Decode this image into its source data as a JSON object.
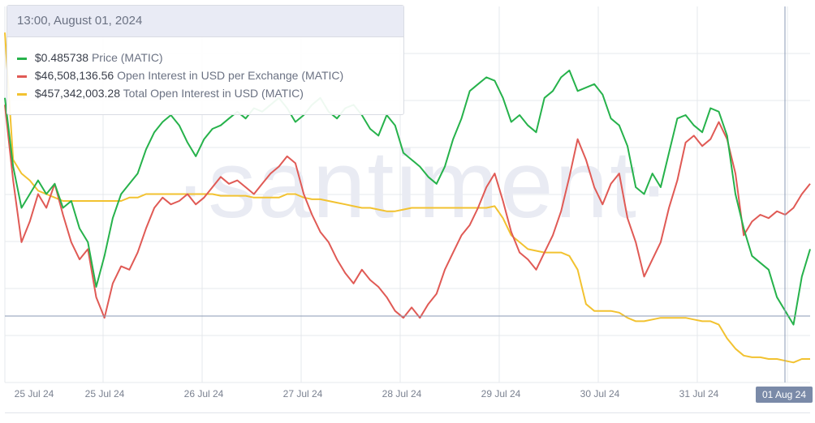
{
  "tooltip": {
    "header": "13:00, August 01, 2024",
    "rows": [
      {
        "value": "$0.485738",
        "label": "Price (MATIC)",
        "color": "#26b24b"
      },
      {
        "value": "$46,508,136.56",
        "label": "Open Interest in USD per Exchange (MATIC)",
        "color": "#e05a55"
      },
      {
        "value": "$457,342,003.28",
        "label": "Total Open Interest in USD (MATIC)",
        "color": "#f2c230"
      }
    ]
  },
  "watermark": "·santiment·",
  "colors": {
    "price": "#26b24b",
    "oi_exchange": "#e05a55",
    "oi_total": "#f2c230",
    "crosshair": "#8a9ab5",
    "badge": "#7a8aa8"
  },
  "chart_data": {
    "type": "line",
    "xlabel": "",
    "ylabel": "",
    "x_tick_labels": [
      "25 Jul 24",
      "25 Jul 24",
      "26 Jul 24",
      "27 Jul 24",
      "28 Jul 24",
      "29 Jul 24",
      "30 Jul 24",
      "31 Jul 24",
      "01 Aug 24"
    ],
    "highlighted_tick": "01 Aug 24",
    "crosshair_time": "13:00, August 01, 2024",
    "grid": true,
    "legend": "tooltip top-left",
    "x_range": [
      0,
      192
    ],
    "y_range": [
      0,
      100
    ],
    "series": [
      {
        "name": "Price (MATIC)",
        "color": "#26b24b",
        "points": [
          [
            0,
            80
          ],
          [
            2,
            60
          ],
          [
            4,
            48
          ],
          [
            6,
            52
          ],
          [
            8,
            56
          ],
          [
            10,
            52
          ],
          [
            12,
            55
          ],
          [
            14,
            48
          ],
          [
            16,
            50
          ],
          [
            18,
            42
          ],
          [
            20,
            38
          ],
          [
            22,
            25
          ],
          [
            24,
            34
          ],
          [
            26,
            45
          ],
          [
            28,
            52
          ],
          [
            30,
            55
          ],
          [
            32,
            58
          ],
          [
            34,
            65
          ],
          [
            36,
            70
          ],
          [
            38,
            73
          ],
          [
            40,
            75
          ],
          [
            42,
            72
          ],
          [
            44,
            67
          ],
          [
            46,
            63
          ],
          [
            48,
            68
          ],
          [
            50,
            71
          ],
          [
            52,
            72
          ],
          [
            54,
            74
          ],
          [
            56,
            76
          ],
          [
            58,
            74
          ],
          [
            60,
            77
          ],
          [
            62,
            76
          ],
          [
            64,
            78
          ],
          [
            66,
            80
          ],
          [
            68,
            77
          ],
          [
            70,
            73
          ],
          [
            72,
            75
          ],
          [
            74,
            78
          ],
          [
            76,
            80
          ],
          [
            78,
            76
          ],
          [
            80,
            74
          ],
          [
            82,
            77
          ],
          [
            84,
            78
          ],
          [
            86,
            75
          ],
          [
            88,
            71
          ],
          [
            90,
            69
          ],
          [
            92,
            75
          ],
          [
            94,
            72
          ],
          [
            96,
            64
          ],
          [
            98,
            62
          ],
          [
            100,
            60
          ],
          [
            102,
            57
          ],
          [
            104,
            55
          ],
          [
            106,
            60
          ],
          [
            108,
            68
          ],
          [
            110,
            74
          ],
          [
            112,
            82
          ],
          [
            114,
            84
          ],
          [
            116,
            86
          ],
          [
            118,
            85
          ],
          [
            120,
            80
          ],
          [
            122,
            73
          ],
          [
            124,
            75
          ],
          [
            126,
            72
          ],
          [
            128,
            70
          ],
          [
            130,
            80
          ],
          [
            132,
            82
          ],
          [
            134,
            86
          ],
          [
            136,
            88
          ],
          [
            138,
            82
          ],
          [
            140,
            83
          ],
          [
            142,
            84
          ],
          [
            144,
            81
          ],
          [
            146,
            74
          ],
          [
            148,
            72
          ],
          [
            150,
            66
          ],
          [
            152,
            54
          ],
          [
            154,
            52
          ],
          [
            156,
            58
          ],
          [
            158,
            54
          ],
          [
            160,
            64
          ],
          [
            162,
            74
          ],
          [
            164,
            75
          ],
          [
            166,
            72
          ],
          [
            168,
            70
          ],
          [
            170,
            77
          ],
          [
            172,
            76
          ],
          [
            174,
            69
          ],
          [
            176,
            52
          ],
          [
            178,
            42
          ],
          [
            180,
            34
          ],
          [
            182,
            32
          ],
          [
            184,
            30
          ],
          [
            186,
            22
          ],
          [
            188,
            18
          ],
          [
            190,
            14
          ],
          [
            192,
            28
          ],
          [
            194,
            36
          ]
        ]
      },
      {
        "name": "Open Interest in USD per Exchange (MATIC)",
        "color": "#e05a55",
        "points": [
          [
            0,
            78
          ],
          [
            2,
            56
          ],
          [
            4,
            38
          ],
          [
            6,
            44
          ],
          [
            8,
            52
          ],
          [
            10,
            48
          ],
          [
            12,
            55
          ],
          [
            14,
            46
          ],
          [
            16,
            38
          ],
          [
            18,
            33
          ],
          [
            20,
            36
          ],
          [
            22,
            22
          ],
          [
            24,
            16
          ],
          [
            26,
            26
          ],
          [
            28,
            31
          ],
          [
            30,
            30
          ],
          [
            32,
            35
          ],
          [
            34,
            42
          ],
          [
            36,
            48
          ],
          [
            38,
            51
          ],
          [
            40,
            49
          ],
          [
            42,
            50
          ],
          [
            44,
            52
          ],
          [
            46,
            49
          ],
          [
            48,
            51
          ],
          [
            50,
            54
          ],
          [
            52,
            57
          ],
          [
            54,
            55
          ],
          [
            56,
            56
          ],
          [
            58,
            54
          ],
          [
            60,
            52
          ],
          [
            62,
            55
          ],
          [
            64,
            58
          ],
          [
            66,
            60
          ],
          [
            68,
            63
          ],
          [
            70,
            61
          ],
          [
            72,
            52
          ],
          [
            74,
            46
          ],
          [
            76,
            41
          ],
          [
            78,
            38
          ],
          [
            80,
            33
          ],
          [
            82,
            29
          ],
          [
            84,
            26
          ],
          [
            86,
            30
          ],
          [
            88,
            27
          ],
          [
            90,
            25
          ],
          [
            92,
            22
          ],
          [
            94,
            18
          ],
          [
            96,
            16
          ],
          [
            98,
            19
          ],
          [
            100,
            16
          ],
          [
            102,
            20
          ],
          [
            104,
            23
          ],
          [
            106,
            30
          ],
          [
            108,
            35
          ],
          [
            110,
            40
          ],
          [
            112,
            43
          ],
          [
            114,
            48
          ],
          [
            116,
            54
          ],
          [
            118,
            58
          ],
          [
            120,
            50
          ],
          [
            122,
            41
          ],
          [
            124,
            35
          ],
          [
            126,
            33
          ],
          [
            128,
            30
          ],
          [
            130,
            35
          ],
          [
            132,
            40
          ],
          [
            134,
            47
          ],
          [
            136,
            57
          ],
          [
            138,
            68
          ],
          [
            140,
            62
          ],
          [
            142,
            54
          ],
          [
            144,
            49
          ],
          [
            146,
            55
          ],
          [
            148,
            58
          ],
          [
            150,
            45
          ],
          [
            152,
            38
          ],
          [
            154,
            28
          ],
          [
            156,
            33
          ],
          [
            158,
            38
          ],
          [
            160,
            48
          ],
          [
            162,
            56
          ],
          [
            164,
            67
          ],
          [
            166,
            69
          ],
          [
            168,
            66
          ],
          [
            170,
            68
          ],
          [
            172,
            73
          ],
          [
            174,
            68
          ],
          [
            176,
            58
          ],
          [
            178,
            40
          ],
          [
            180,
            44
          ],
          [
            182,
            46
          ],
          [
            184,
            45
          ],
          [
            186,
            47
          ],
          [
            188,
            46
          ],
          [
            190,
            48
          ],
          [
            192,
            52
          ],
          [
            194,
            55
          ]
        ]
      },
      {
        "name": "Total Open Interest in USD (MATIC)",
        "color": "#f2c230",
        "points": [
          [
            0,
            99
          ],
          [
            2,
            62
          ],
          [
            4,
            58
          ],
          [
            6,
            56
          ],
          [
            8,
            53
          ],
          [
            10,
            52
          ],
          [
            12,
            51
          ],
          [
            14,
            50
          ],
          [
            16,
            50
          ],
          [
            18,
            50
          ],
          [
            20,
            50
          ],
          [
            22,
            50
          ],
          [
            24,
            50
          ],
          [
            26,
            50
          ],
          [
            28,
            50
          ],
          [
            30,
            51
          ],
          [
            32,
            51
          ],
          [
            34,
            52
          ],
          [
            36,
            52
          ],
          [
            38,
            52
          ],
          [
            40,
            52
          ],
          [
            42,
            52
          ],
          [
            44,
            52
          ],
          [
            46,
            52
          ],
          [
            48,
            52
          ],
          [
            50,
            52
          ],
          [
            52,
            51.5
          ],
          [
            54,
            51.5
          ],
          [
            56,
            51.5
          ],
          [
            58,
            51.5
          ],
          [
            60,
            51
          ],
          [
            62,
            51
          ],
          [
            64,
            51
          ],
          [
            66,
            51
          ],
          [
            68,
            52
          ],
          [
            70,
            52
          ],
          [
            72,
            51
          ],
          [
            74,
            50.5
          ],
          [
            76,
            50.5
          ],
          [
            78,
            50
          ],
          [
            80,
            49.5
          ],
          [
            82,
            49
          ],
          [
            84,
            48.5
          ],
          [
            86,
            48
          ],
          [
            88,
            48
          ],
          [
            90,
            47.5
          ],
          [
            92,
            47
          ],
          [
            94,
            47
          ],
          [
            96,
            47.5
          ],
          [
            98,
            48
          ],
          [
            100,
            48
          ],
          [
            102,
            48
          ],
          [
            104,
            48
          ],
          [
            106,
            48
          ],
          [
            108,
            48
          ],
          [
            110,
            48
          ],
          [
            112,
            48
          ],
          [
            114,
            48
          ],
          [
            116,
            48
          ],
          [
            118,
            48.5
          ],
          [
            120,
            45
          ],
          [
            122,
            40
          ],
          [
            124,
            38
          ],
          [
            126,
            36
          ],
          [
            128,
            35.5
          ],
          [
            130,
            35
          ],
          [
            132,
            35
          ],
          [
            134,
            35
          ],
          [
            136,
            34
          ],
          [
            138,
            30
          ],
          [
            140,
            20
          ],
          [
            142,
            18
          ],
          [
            144,
            18
          ],
          [
            146,
            18
          ],
          [
            148,
            17.5
          ],
          [
            150,
            16
          ],
          [
            152,
            15
          ],
          [
            154,
            15
          ],
          [
            156,
            15.5
          ],
          [
            158,
            16
          ],
          [
            160,
            16
          ],
          [
            162,
            16
          ],
          [
            164,
            16
          ],
          [
            166,
            15.5
          ],
          [
            168,
            15
          ],
          [
            170,
            15
          ],
          [
            172,
            14
          ],
          [
            174,
            10
          ],
          [
            176,
            7
          ],
          [
            178,
            5
          ],
          [
            180,
            4.5
          ],
          [
            182,
            4.5
          ],
          [
            184,
            4
          ],
          [
            186,
            4
          ],
          [
            188,
            3.5
          ],
          [
            190,
            3
          ],
          [
            192,
            4
          ],
          [
            194,
            4
          ]
        ]
      }
    ]
  }
}
